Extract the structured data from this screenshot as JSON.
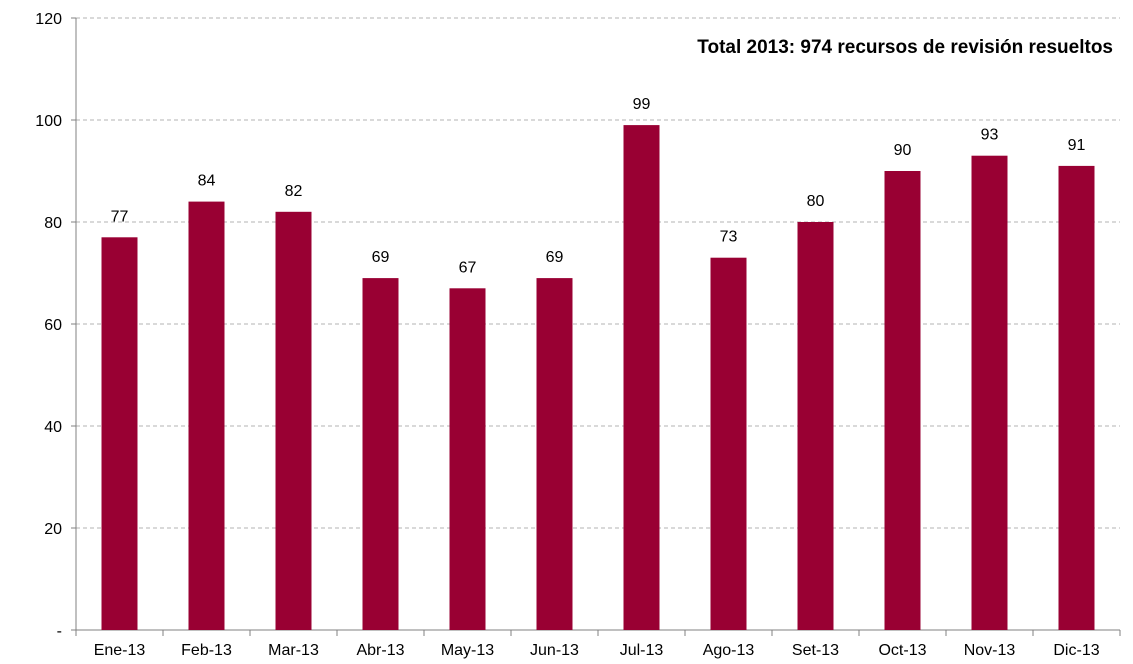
{
  "chart_data": {
    "type": "bar",
    "title": "",
    "annotation": "Total 2013: 974 recursos de revisión resueltos",
    "categories": [
      "Ene-13",
      "Feb-13",
      "Mar-13",
      "Abr-13",
      "May-13",
      "Jun-13",
      "Jul-13",
      "Ago-13",
      "Set-13",
      "Oct-13",
      "Nov-13",
      "Dic-13"
    ],
    "values": [
      77,
      84,
      82,
      69,
      67,
      69,
      99,
      73,
      80,
      90,
      93,
      91
    ],
    "data_labels": [
      "77",
      "84",
      "82",
      "69",
      "67",
      "69",
      "99",
      "73",
      "80",
      "90",
      "93",
      "91"
    ],
    "xlabel": "",
    "ylabel": "",
    "ylim": [
      0,
      120
    ],
    "yticks": [
      0,
      20,
      40,
      60,
      80,
      100,
      120
    ],
    "ytick_labels": [
      "-",
      "20",
      "40",
      "60",
      "80",
      "100",
      "120"
    ],
    "grid": true,
    "bar_color": "#990033",
    "grid_color": "#b3b3b3"
  }
}
